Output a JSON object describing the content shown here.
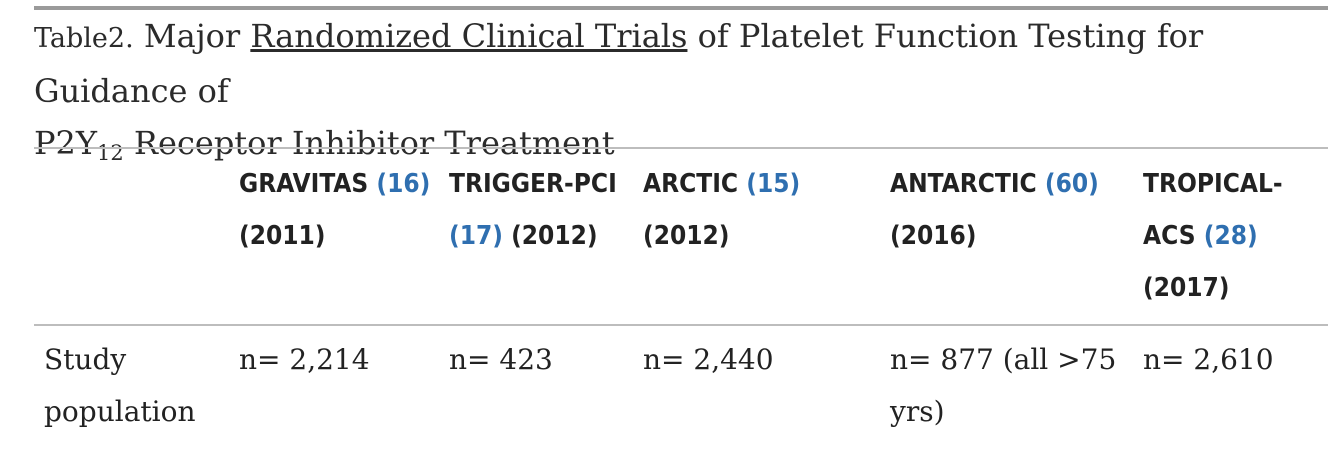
{
  "caption": {
    "label": "Table2.",
    "text_before": "Major",
    "link_text": "Randomized Clinical Trials",
    "text_after": "of Platelet Function Testing for Guidance of",
    "line2_prefix": "P2Y",
    "line2_sub": "12",
    "line2_suffix": "Receptor Inhibitor Treatment"
  },
  "table": {
    "headers": [
      {
        "name": "GRAVITAS",
        "ref": "(16)",
        "year": "(2011)"
      },
      {
        "name": "TRIGGER-PCI",
        "ref": "(17)",
        "year": "(2012)"
      },
      {
        "name": "ARCTIC",
        "ref": "(15)",
        "year": "(2012)"
      },
      {
        "name": "ANTARCTIC",
        "ref": "(60)",
        "year": "(2016)"
      },
      {
        "name": "TROPICAL-ACS",
        "ref": "(28)",
        "year": "(2017)"
      }
    ],
    "rows": [
      {
        "label": "Study population",
        "cells": [
          "n= 2,214",
          "n= 423",
          "n= 2,440",
          "n= 877 (all >75 yrs)",
          "n= 2,610"
        ]
      }
    ]
  }
}
